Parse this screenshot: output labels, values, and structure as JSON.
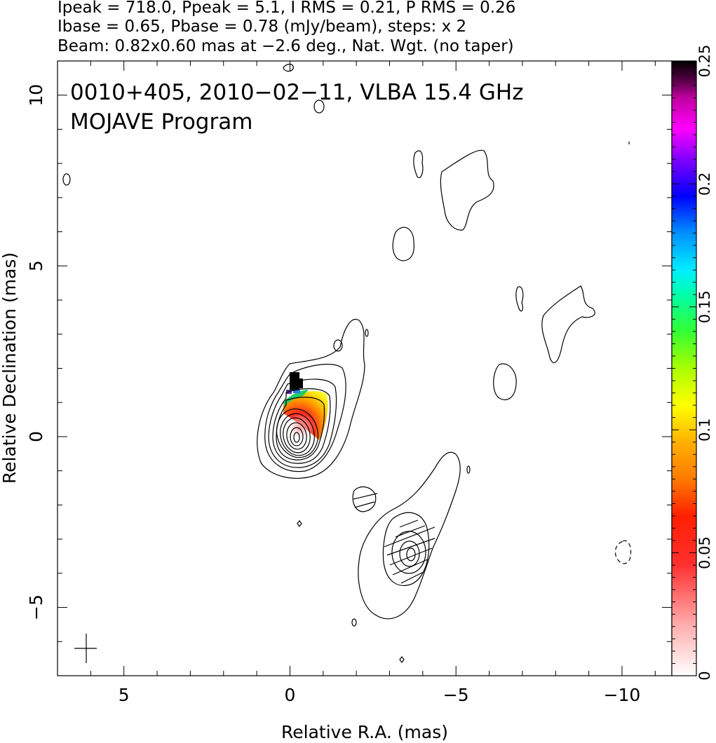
{
  "header": {
    "line1": "Ipeak = 718.0, Ppeak = 5.1, I RMS = 0.21, P RMS = 0.26",
    "line2": "Ibase = 0.65, Pbase = 0.78 (mJy/beam), steps: x 2",
    "line3": "Beam: 0.82x0.60 mas at −2.6 deg., Nat. Wgt. (no taper)"
  },
  "inset": {
    "line1": "0010+405, 2010−02−11, VLBA 15.4 GHz",
    "line2": "MOJAVE Program"
  },
  "chart_data": {
    "type": "heatmap",
    "xlabel": "Relative R.A. (mas)",
    "ylabel": "Relative Declination (mas)",
    "xlim": [
      7,
      -11.5
    ],
    "ylim": [
      -7,
      11
    ],
    "xticks": [
      {
        "value": 5,
        "label": "5"
      },
      {
        "value": 0,
        "label": "0"
      },
      {
        "value": -5,
        "label": "−5"
      },
      {
        "value": -10,
        "label": "−10"
      }
    ],
    "yticks": [
      {
        "value": 10,
        "label": "10"
      },
      {
        "value": 5,
        "label": "5"
      },
      {
        "value": 0,
        "label": "0"
      },
      {
        "value": -5,
        "label": "−5"
      }
    ],
    "colorbar": {
      "min": 0,
      "max": 0.25,
      "ticks": [
        {
          "value": 0,
          "label": "0"
        },
        {
          "value": 0.05,
          "label": "0.05"
        },
        {
          "value": 0.1,
          "label": "0.1"
        },
        {
          "value": 0.15,
          "label": "0.15"
        },
        {
          "value": 0.2,
          "label": "0.2"
        },
        {
          "value": 0.25,
          "label": "0.25"
        }
      ]
    },
    "core": {
      "x": 0,
      "y": 0
    },
    "contour_levels_mjy": [
      0.65,
      1.3,
      2.6,
      5.2,
      10.4,
      20.8,
      41.6,
      83.2,
      166.4,
      332.8,
      665.6
    ],
    "components": [
      {
        "x": -3.3,
        "y": -3.4
      },
      {
        "x": -1.9,
        "y": -1.8
      }
    ],
    "beam": {
      "x": 6.2,
      "y": -6.3,
      "major": 0.82,
      "minor": 0.6,
      "pa_deg": -2.6
    }
  }
}
